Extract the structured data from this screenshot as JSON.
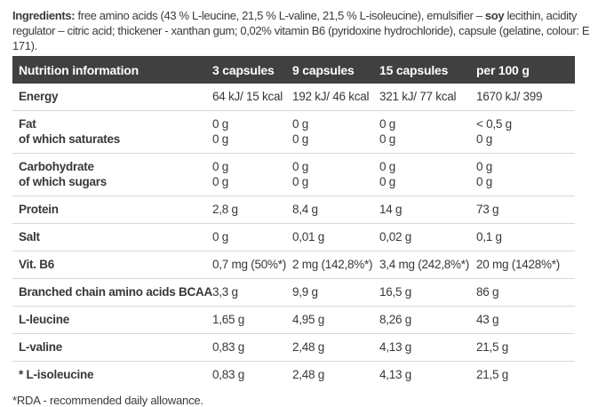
{
  "ingredients": {
    "parts": [
      "Ingredients:",
      " free amino acids (43 % L-leucine, 21,5 % L-valine, 21,5 % L-isoleucine), emulsifier – ",
      "soy",
      " lecithin, acidity regulator – citric acid; thickener - xanthan gum;  0,02% vitamin B6 (pyridoxine hydrochloride), capsule (gelatine, colour: E 171)."
    ]
  },
  "table": {
    "headers": [
      "Nutrition information",
      "3 capsules",
      "9 capsules",
      "15 capsules",
      "per 100 g"
    ],
    "rows": [
      {
        "label": "Energy",
        "sublabel": "",
        "values": [
          "64 kJ/ 15 kcal",
          "192 kJ/ 46 kcal",
          "321 kJ/ 77 kcal",
          "1670 kJ/ 399"
        ],
        "subvalues": [
          "",
          "",
          "",
          ""
        ]
      },
      {
        "label": "Fat",
        "sublabel": "of which saturates",
        "values": [
          "0 g",
          "0 g",
          "0 g",
          "< 0,5 g"
        ],
        "subvalues": [
          "0 g",
          "0 g",
          "0 g",
          "0 g"
        ]
      },
      {
        "label": "Carbohydrate",
        "sublabel": "of which sugars",
        "values": [
          "0 g",
          "0 g",
          "0 g",
          "0 g"
        ],
        "subvalues": [
          "0 g",
          "0 g",
          "0 g",
          "0 g"
        ]
      },
      {
        "label": "Protein",
        "sublabel": "",
        "values": [
          "2,8 g",
          "8,4 g",
          "14 g",
          "73 g"
        ],
        "subvalues": [
          "",
          "",
          "",
          ""
        ]
      },
      {
        "label": "Salt",
        "sublabel": "",
        "values": [
          "0 g",
          "0,01 g",
          "0,02 g",
          "0,1 g"
        ],
        "subvalues": [
          "",
          "",
          "",
          ""
        ]
      },
      {
        "label": "Vit. B6",
        "sublabel": "",
        "values": [
          "0,7 mg (50%*)",
          "2 mg (142,8%*)",
          "3,4 mg (242,8%*)",
          "20 mg (1428%*)"
        ],
        "subvalues": [
          "",
          "",
          "",
          ""
        ]
      },
      {
        "label": "Branched chain amino acids BCAA",
        "sublabel": "",
        "values": [
          "3,3 g",
          "9,9 g",
          "16,5 g",
          "86 g"
        ],
        "subvalues": [
          "",
          "",
          "",
          ""
        ]
      },
      {
        "label": "L-leucine",
        "sublabel": "",
        "values": [
          "1,65 g",
          "4,95 g",
          "8,26 g",
          "43 g"
        ],
        "subvalues": [
          "",
          "",
          "",
          ""
        ]
      },
      {
        "label": "L-valine",
        "sublabel": "",
        "values": [
          "0,83 g",
          "2,48 g",
          "4,13 g",
          "21,5 g"
        ],
        "subvalues": [
          "",
          "",
          "",
          ""
        ]
      },
      {
        "label": "* L-isoleucine",
        "sublabel": "",
        "values": [
          "0,83 g",
          "2,48 g",
          "4,13 g",
          "21,5 g"
        ],
        "subvalues": [
          "",
          "",
          "",
          ""
        ]
      }
    ]
  },
  "footnote": "*RDA - recommended daily allowance.",
  "colors": {
    "header_bg": "#404040",
    "header_text": "#fdfdfd",
    "body_text": "#383838",
    "divider": "#d8d8d8"
  }
}
